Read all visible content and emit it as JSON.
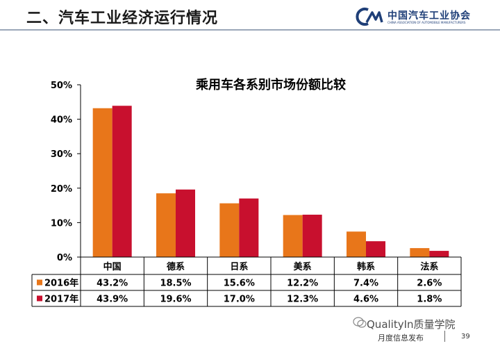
{
  "page": {
    "title": "二、汽车工业经济运行情况",
    "logo_name": "中国汽车工业协会",
    "logo_sub": "CHINA ASSOCIATION OF AUTOMOBILE MANUFACTURERS",
    "watermark": "QualityIn质量学院",
    "footer": "月度信息发布",
    "page_number": "39"
  },
  "colors": {
    "series_2016": "#E8761A",
    "series_2017": "#C8102E",
    "logo_blue": "#1f3f78"
  },
  "chart_data": {
    "type": "bar",
    "title": "乘用车各系别市场份额比较",
    "categories": [
      "中国",
      "德系",
      "日系",
      "美系",
      "韩系",
      "法系"
    ],
    "series": [
      {
        "name": "2016年",
        "values": [
          43.2,
          18.5,
          15.6,
          12.2,
          7.4,
          2.6
        ],
        "labels": [
          "43.2%",
          "18.5%",
          "15.6%",
          "12.2%",
          "7.4%",
          "2.6%"
        ]
      },
      {
        "name": "2017年",
        "values": [
          43.9,
          19.6,
          17.0,
          12.3,
          4.6,
          1.8
        ],
        "labels": [
          "43.9%",
          "19.6%",
          "17.0%",
          "12.3%",
          "4.6%",
          "1.8%"
        ]
      }
    ],
    "ylim": [
      0,
      50
    ],
    "yticks": [
      0,
      10,
      20,
      30,
      40,
      50
    ],
    "ytick_labels": [
      "0%",
      "10%",
      "20%",
      "30%",
      "40%",
      "50%"
    ],
    "xlabel": "",
    "ylabel": "",
    "grid": false,
    "legend": "data table"
  }
}
